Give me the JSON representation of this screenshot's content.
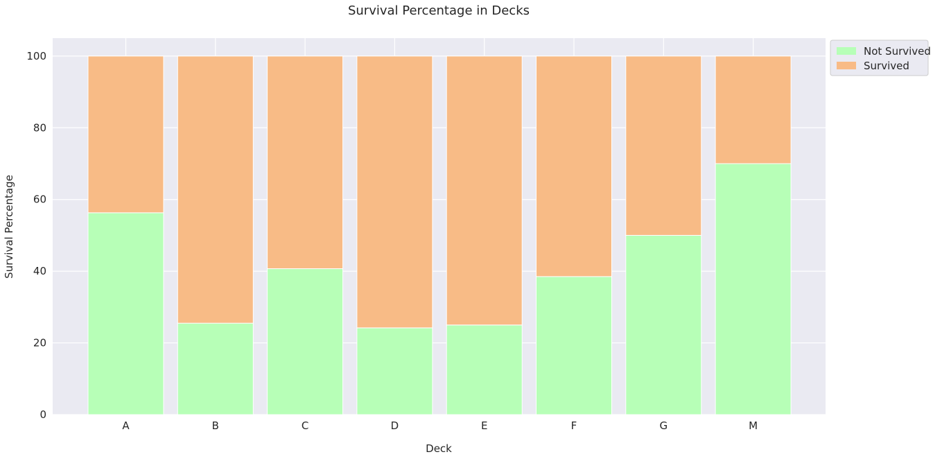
{
  "chart_data": {
    "type": "bar",
    "stacked": true,
    "title": "Survival Percentage in Decks",
    "xlabel": "Deck",
    "ylabel": "Survival Percentage",
    "categories": [
      "A",
      "B",
      "C",
      "D",
      "E",
      "F",
      "G",
      "M"
    ],
    "series": [
      {
        "name": "Not Survived",
        "color": "#b7ffb7",
        "values": [
          56.3,
          25.5,
          40.7,
          24.2,
          25.0,
          38.5,
          50.0,
          70.0
        ]
      },
      {
        "name": "Survived",
        "color": "#f8bb86",
        "values": [
          43.7,
          74.5,
          59.3,
          75.8,
          75.0,
          61.5,
          50.0,
          30.0
        ]
      }
    ],
    "ylim": [
      0,
      105
    ],
    "yticks": [
      0,
      20,
      40,
      60,
      80,
      100
    ],
    "grid": true,
    "legend_position": "outside-top-right",
    "background_color": "#eaeaf2",
    "grid_color": "#ffffff"
  }
}
